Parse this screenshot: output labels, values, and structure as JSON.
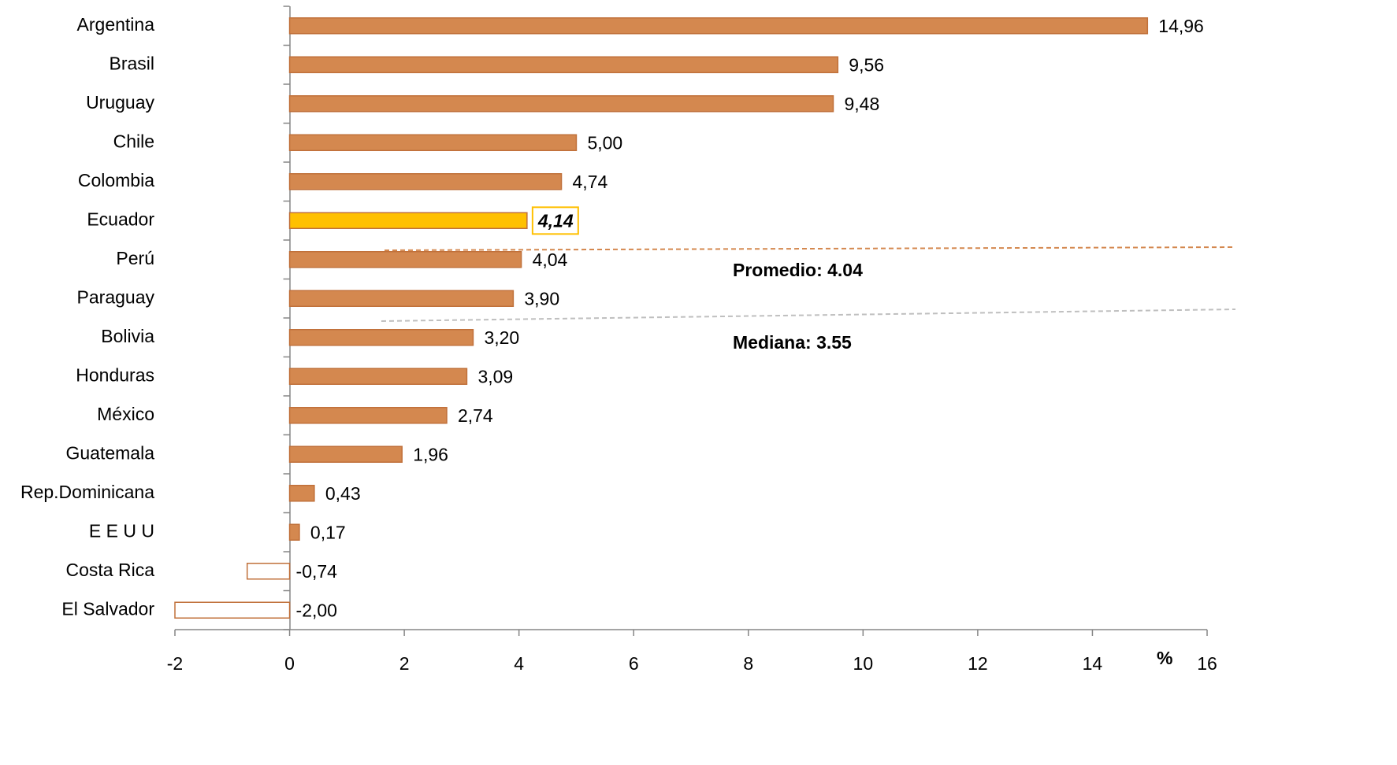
{
  "chart_data": {
    "type": "bar",
    "orientation": "horizontal",
    "x_label": "%",
    "categories": [
      "Argentina",
      "Brasil",
      "Uruguay",
      "Chile",
      "Colombia",
      "Ecuador",
      "Perú",
      "Paraguay",
      "Bolivia",
      "Honduras",
      "México",
      "Guatemala",
      "Rep.Dominicana",
      "E E U U",
      "Costa Rica",
      "El Salvador"
    ],
    "values": [
      14.96,
      9.56,
      9.48,
      5.0,
      4.74,
      4.14,
      4.04,
      3.9,
      3.2,
      3.09,
      2.74,
      1.96,
      0.43,
      0.17,
      -0.74,
      -2.0
    ],
    "value_labels": [
      "14,96",
      "9,56",
      "9,48",
      "5,00",
      "4,74",
      "4,14",
      "4,04",
      "3,90",
      "3,20",
      "3,09",
      "2,74",
      "1,96",
      "0,43",
      "0,17",
      "-0,74",
      "-2,00"
    ],
    "colors": [
      "#d4884f",
      "#d4884f",
      "#d4884f",
      "#d4884f",
      "#d4884f",
      "#ffc000",
      "#d4884f",
      "#d4884f",
      "#d4884f",
      "#d4884f",
      "#d4884f",
      "#d4884f",
      "#d4884f",
      "#d4884f",
      "#ffffff",
      "#ffffff"
    ],
    "edge_color": "#c0703a",
    "label_emphasis": [
      false,
      false,
      false,
      false,
      false,
      true,
      false,
      false,
      false,
      false,
      false,
      false,
      false,
      false,
      false,
      false
    ],
    "xlim": [
      -2,
      16
    ],
    "xticks": [
      -2,
      0,
      2,
      4,
      6,
      8,
      10,
      12,
      14,
      16
    ],
    "annotations": [
      {
        "text": "Promedio: 4.04",
        "color": "#d4884f"
      },
      {
        "text": "Mediana: 3.55",
        "color": "#000000"
      }
    ]
  }
}
